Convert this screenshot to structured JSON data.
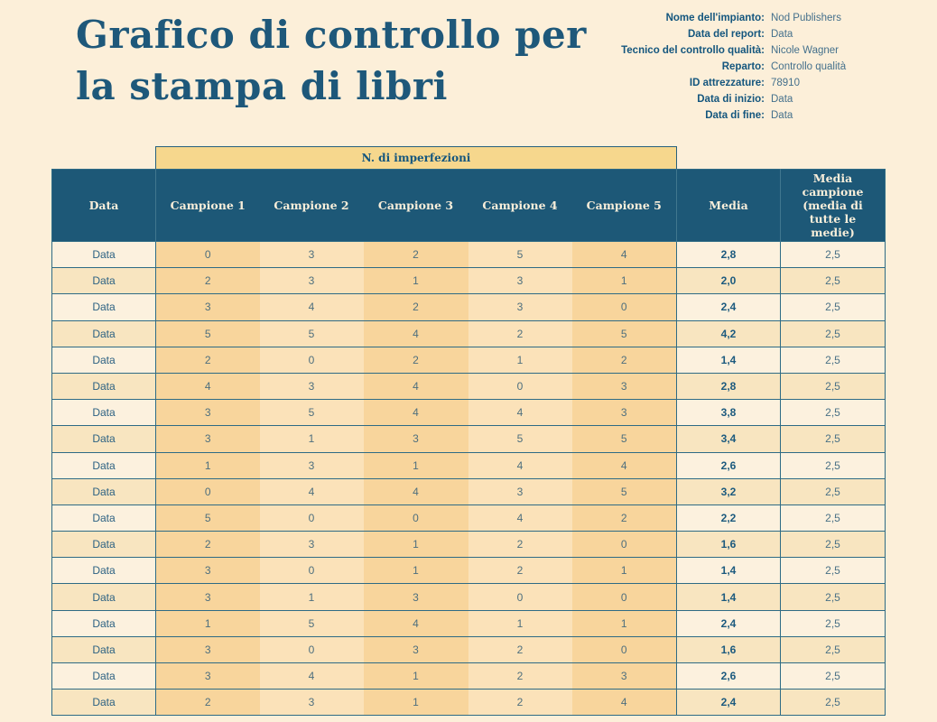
{
  "title": {
    "line1": "Grafico di controllo per",
    "line2": "la stampa di libri"
  },
  "info": {
    "fields": [
      {
        "label": "Nome dell'impianto:",
        "value": "Nod Publishers"
      },
      {
        "label": "Data del report:",
        "value": "Data"
      },
      {
        "label": "Tecnico del controllo qualità:",
        "value": "Nicole Wagner"
      },
      {
        "label": "Reparto:",
        "value": "Controllo qualità"
      },
      {
        "label": "ID attrezzature:",
        "value": "78910"
      },
      {
        "label": "Data di inizio:",
        "value": "Data"
      },
      {
        "label": "Data di fine:",
        "value": "Data"
      }
    ]
  },
  "table": {
    "band_label": "N. di imperfezioni",
    "columns": [
      "Data",
      "Campione 1",
      "Campione 2",
      "Campione 3",
      "Campione 4",
      "Campione 5",
      "Media",
      "Media campione (media di tutte le medie)"
    ],
    "rows": [
      {
        "data": "Data",
        "samples": [
          0,
          3,
          2,
          5,
          4
        ],
        "media": "2,8",
        "media_campione": "2,5"
      },
      {
        "data": "Data",
        "samples": [
          2,
          3,
          1,
          3,
          1
        ],
        "media": "2,0",
        "media_campione": "2,5"
      },
      {
        "data": "Data",
        "samples": [
          3,
          4,
          2,
          3,
          0
        ],
        "media": "2,4",
        "media_campione": "2,5"
      },
      {
        "data": "Data",
        "samples": [
          5,
          5,
          4,
          2,
          5
        ],
        "media": "4,2",
        "media_campione": "2,5"
      },
      {
        "data": "Data",
        "samples": [
          2,
          0,
          2,
          1,
          2
        ],
        "media": "1,4",
        "media_campione": "2,5"
      },
      {
        "data": "Data",
        "samples": [
          4,
          3,
          4,
          0,
          3
        ],
        "media": "2,8",
        "media_campione": "2,5"
      },
      {
        "data": "Data",
        "samples": [
          3,
          5,
          4,
          4,
          3
        ],
        "media": "3,8",
        "media_campione": "2,5"
      },
      {
        "data": "Data",
        "samples": [
          3,
          1,
          3,
          5,
          5
        ],
        "media": "3,4",
        "media_campione": "2,5"
      },
      {
        "data": "Data",
        "samples": [
          1,
          3,
          1,
          4,
          4
        ],
        "media": "2,6",
        "media_campione": "2,5"
      },
      {
        "data": "Data",
        "samples": [
          0,
          4,
          4,
          3,
          5
        ],
        "media": "3,2",
        "media_campione": "2,5"
      },
      {
        "data": "Data",
        "samples": [
          5,
          0,
          0,
          4,
          2
        ],
        "media": "2,2",
        "media_campione": "2,5"
      },
      {
        "data": "Data",
        "samples": [
          2,
          3,
          1,
          2,
          0
        ],
        "media": "1,6",
        "media_campione": "2,5"
      },
      {
        "data": "Data",
        "samples": [
          3,
          0,
          1,
          2,
          1
        ],
        "media": "1,4",
        "media_campione": "2,5"
      },
      {
        "data": "Data",
        "samples": [
          3,
          1,
          3,
          0,
          0
        ],
        "media": "1,4",
        "media_campione": "2,5"
      },
      {
        "data": "Data",
        "samples": [
          1,
          5,
          4,
          1,
          1
        ],
        "media": "2,4",
        "media_campione": "2,5"
      },
      {
        "data": "Data",
        "samples": [
          3,
          0,
          3,
          2,
          0
        ],
        "media": "1,6",
        "media_campione": "2,5"
      },
      {
        "data": "Data",
        "samples": [
          3,
          4,
          1,
          2,
          3
        ],
        "media": "2,6",
        "media_campione": "2,5"
      },
      {
        "data": "Data",
        "samples": [
          2,
          3,
          1,
          2,
          4
        ],
        "media": "2,4",
        "media_campione": "2,5"
      }
    ]
  },
  "colors": {
    "page_background": "#FCEFD9",
    "title_text": "#1E587A",
    "header_background": "#1D5877",
    "header_text": "#F8EEDA",
    "band_background": "#F6D78D",
    "sample_column_dark": "#F8D59C",
    "sample_column_light": "#FBE2B9",
    "row_stripe_light": "#FCF1DE",
    "row_stripe_dark": "#F8E5C0",
    "table_border": "#2E6B85"
  }
}
